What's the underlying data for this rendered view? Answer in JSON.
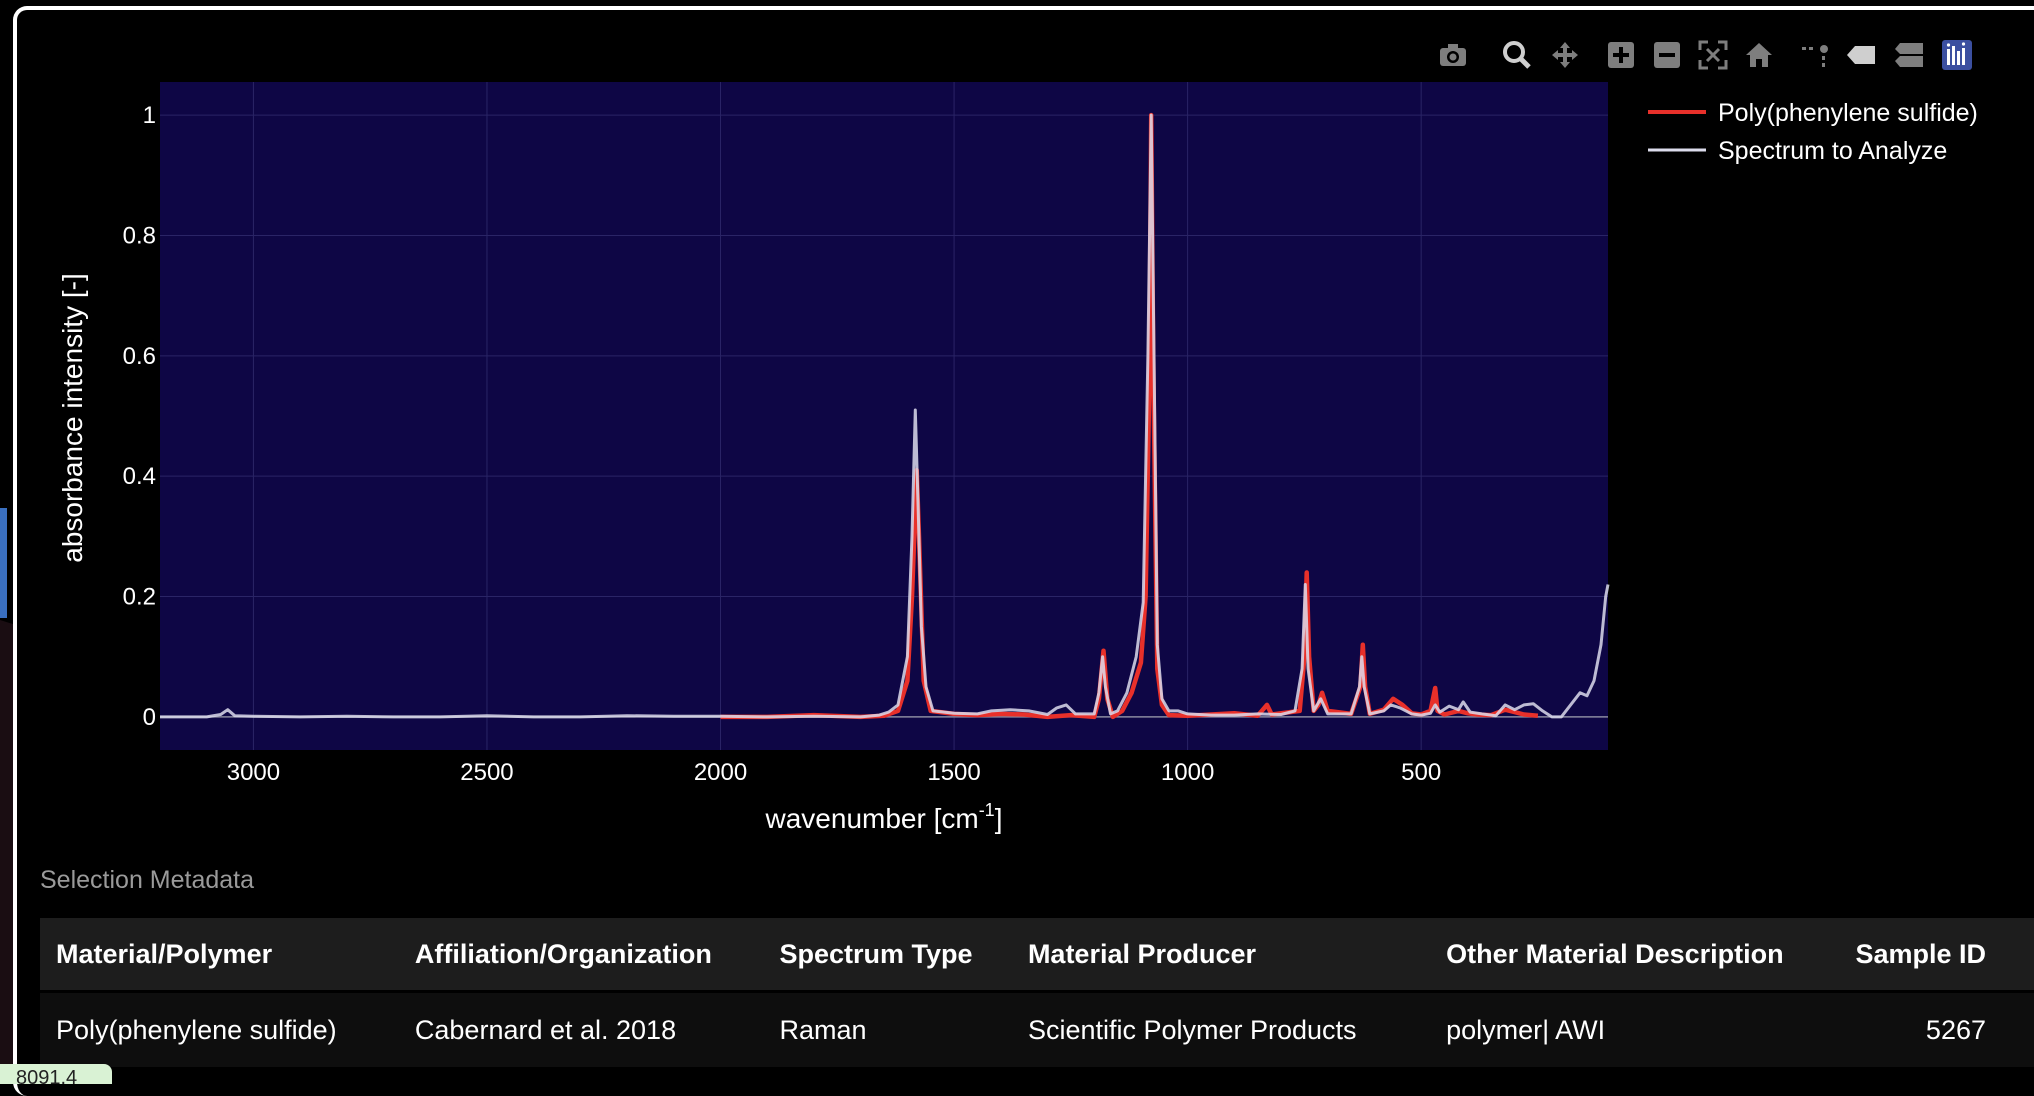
{
  "chart_data": {
    "type": "line",
    "xlabel": "wavenumber [cm",
    "xlabel_sup": "-1",
    "xlabel_close": "]",
    "ylabel": "absorbance intensity [-]",
    "xlim": [
      3200,
      100
    ],
    "ylim": [
      -0.055,
      1.055
    ],
    "x_reversed": true,
    "xticks": [
      3000,
      2500,
      2000,
      1500,
      1000,
      500
    ],
    "yticks": [
      0,
      0.2,
      0.4,
      0.6,
      0.8,
      1
    ],
    "ytick_labels": [
      "0",
      "0.2",
      "0.4",
      "0.6",
      "0.8",
      "1"
    ],
    "grid": true,
    "legend_position": "top-right-outside",
    "plot_background": "#0e0645",
    "series": [
      {
        "name": "Poly(phenylene sulfide)",
        "color": "#e8302a",
        "points": [
          [
            2000,
            0.0
          ],
          [
            1900,
            0.0
          ],
          [
            1800,
            0.003
          ],
          [
            1700,
            0.0
          ],
          [
            1650,
            0.002
          ],
          [
            1620,
            0.01
          ],
          [
            1600,
            0.06
          ],
          [
            1590,
            0.2
          ],
          [
            1580,
            0.41
          ],
          [
            1575,
            0.3
          ],
          [
            1565,
            0.06
          ],
          [
            1550,
            0.01
          ],
          [
            1500,
            0.005
          ],
          [
            1450,
            0.003
          ],
          [
            1400,
            0.005
          ],
          [
            1350,
            0.004
          ],
          [
            1300,
            0.0
          ],
          [
            1250,
            0.003
          ],
          [
            1200,
            0.0
          ],
          [
            1190,
            0.03
          ],
          [
            1180,
            0.11
          ],
          [
            1172,
            0.03
          ],
          [
            1160,
            0.0
          ],
          [
            1140,
            0.01
          ],
          [
            1120,
            0.04
          ],
          [
            1100,
            0.09
          ],
          [
            1090,
            0.2
          ],
          [
            1082,
            0.55
          ],
          [
            1078,
            1.0
          ],
          [
            1073,
            0.55
          ],
          [
            1065,
            0.08
          ],
          [
            1055,
            0.02
          ],
          [
            1040,
            0.003
          ],
          [
            1000,
            0.002
          ],
          [
            950,
            0.004
          ],
          [
            900,
            0.006
          ],
          [
            850,
            0.002
          ],
          [
            830,
            0.02
          ],
          [
            820,
            0.004
          ],
          [
            760,
            0.01
          ],
          [
            750,
            0.1
          ],
          [
            745,
            0.24
          ],
          [
            740,
            0.1
          ],
          [
            730,
            0.01
          ],
          [
            720,
            0.02
          ],
          [
            712,
            0.04
          ],
          [
            700,
            0.01
          ],
          [
            650,
            0.005
          ],
          [
            630,
            0.05
          ],
          [
            625,
            0.12
          ],
          [
            620,
            0.05
          ],
          [
            610,
            0.005
          ],
          [
            580,
            0.012
          ],
          [
            560,
            0.03
          ],
          [
            540,
            0.02
          ],
          [
            520,
            0.006
          ],
          [
            500,
            0.004
          ],
          [
            480,
            0.01
          ],
          [
            470,
            0.048
          ],
          [
            465,
            0.01
          ],
          [
            450,
            0.004
          ],
          [
            420,
            0.01
          ],
          [
            400,
            0.006
          ],
          [
            380,
            0.004
          ],
          [
            350,
            0.003
          ],
          [
            320,
            0.012
          ],
          [
            300,
            0.008
          ],
          [
            280,
            0.004
          ],
          [
            250,
            0.002
          ]
        ]
      },
      {
        "name": "Spectrum to Analyze",
        "color": "#dcdcec",
        "points": [
          [
            3200,
            0.0
          ],
          [
            3100,
            0.0
          ],
          [
            3070,
            0.004
          ],
          [
            3055,
            0.012
          ],
          [
            3040,
            0.002
          ],
          [
            3000,
            0.001
          ],
          [
            2900,
            0.0
          ],
          [
            2800,
            0.001
          ],
          [
            2700,
            0.0
          ],
          [
            2600,
            0.0
          ],
          [
            2500,
            0.002
          ],
          [
            2400,
            0.0
          ],
          [
            2300,
            0.0
          ],
          [
            2200,
            0.002
          ],
          [
            2100,
            0.001
          ],
          [
            2000,
            0.001
          ],
          [
            1900,
            0.0
          ],
          [
            1800,
            0.001
          ],
          [
            1700,
            0.0
          ],
          [
            1660,
            0.003
          ],
          [
            1640,
            0.008
          ],
          [
            1620,
            0.02
          ],
          [
            1600,
            0.1
          ],
          [
            1590,
            0.3
          ],
          [
            1583,
            0.51
          ],
          [
            1577,
            0.35
          ],
          [
            1570,
            0.15
          ],
          [
            1560,
            0.05
          ],
          [
            1545,
            0.01
          ],
          [
            1500,
            0.006
          ],
          [
            1450,
            0.005
          ],
          [
            1420,
            0.01
          ],
          [
            1380,
            0.012
          ],
          [
            1340,
            0.01
          ],
          [
            1300,
            0.004
          ],
          [
            1280,
            0.015
          ],
          [
            1260,
            0.02
          ],
          [
            1240,
            0.005
          ],
          [
            1200,
            0.005
          ],
          [
            1190,
            0.04
          ],
          [
            1182,
            0.1
          ],
          [
            1176,
            0.05
          ],
          [
            1165,
            0.005
          ],
          [
            1150,
            0.01
          ],
          [
            1130,
            0.04
          ],
          [
            1110,
            0.1
          ],
          [
            1095,
            0.19
          ],
          [
            1085,
            0.6
          ],
          [
            1078,
            1.0
          ],
          [
            1072,
            0.6
          ],
          [
            1065,
            0.12
          ],
          [
            1055,
            0.03
          ],
          [
            1040,
            0.01
          ],
          [
            1020,
            0.01
          ],
          [
            1000,
            0.005
          ],
          [
            950,
            0.003
          ],
          [
            900,
            0.003
          ],
          [
            850,
            0.005
          ],
          [
            800,
            0.004
          ],
          [
            770,
            0.01
          ],
          [
            755,
            0.08
          ],
          [
            748,
            0.22
          ],
          [
            742,
            0.08
          ],
          [
            730,
            0.01
          ],
          [
            715,
            0.03
          ],
          [
            700,
            0.005
          ],
          [
            650,
            0.005
          ],
          [
            632,
            0.05
          ],
          [
            627,
            0.1
          ],
          [
            622,
            0.05
          ],
          [
            610,
            0.005
          ],
          [
            580,
            0.01
          ],
          [
            565,
            0.02
          ],
          [
            545,
            0.015
          ],
          [
            520,
            0.005
          ],
          [
            500,
            0.003
          ],
          [
            480,
            0.006
          ],
          [
            470,
            0.02
          ],
          [
            460,
            0.008
          ],
          [
            440,
            0.018
          ],
          [
            420,
            0.012
          ],
          [
            410,
            0.025
          ],
          [
            395,
            0.008
          ],
          [
            370,
            0.005
          ],
          [
            340,
            0.002
          ],
          [
            320,
            0.02
          ],
          [
            300,
            0.012
          ],
          [
            280,
            0.02
          ],
          [
            260,
            0.022
          ],
          [
            240,
            0.01
          ],
          [
            220,
            0.0
          ],
          [
            200,
            0.0
          ],
          [
            180,
            0.02
          ],
          [
            160,
            0.04
          ],
          [
            145,
            0.035
          ],
          [
            130,
            0.06
          ],
          [
            115,
            0.12
          ],
          [
            105,
            0.2
          ],
          [
            100,
            0.22
          ]
        ]
      }
    ]
  },
  "modebar": {
    "icons": [
      "camera-icon",
      "zoom-icon",
      "pan-icon",
      "zoom-in-icon",
      "zoom-out-icon",
      "autoscale-icon",
      "home-icon",
      "spike-lines-icon",
      "hover-closest-icon",
      "hover-compare-icon",
      "plotly-logo-icon"
    ]
  },
  "metadata": {
    "title": "Selection Metadata",
    "headers": [
      "Material/Polymer",
      "Affiliation/Organization",
      "Spectrum Type",
      "Material Producer",
      "Other Material Description",
      "Sample ID"
    ],
    "row": [
      "Poly(phenylene sulfide)",
      "Cabernard et al. 2018",
      "Raman",
      "Scientific Polymer Products",
      "polymer| AWI",
      "5267"
    ]
  },
  "bottom_tag": "8091.4"
}
